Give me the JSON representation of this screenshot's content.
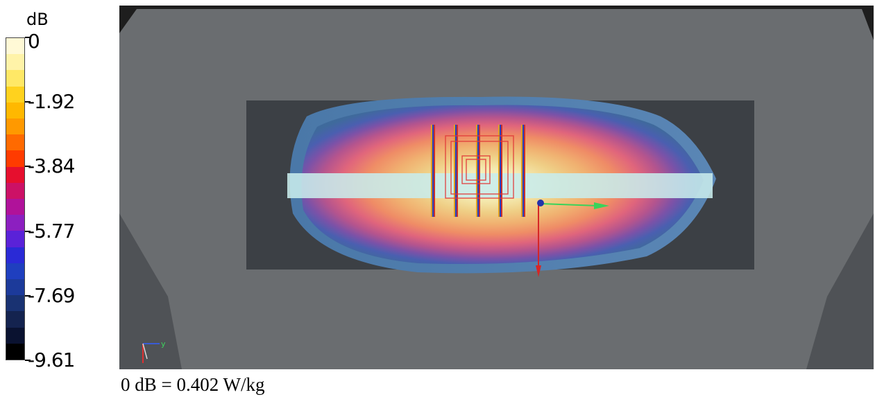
{
  "legend": {
    "unit": "dB",
    "ticks": [
      "0",
      "-1.92",
      "-3.84",
      "-5.77",
      "-7.69",
      "-9.61"
    ],
    "colors": [
      "#fff9d6",
      "#fff3a8",
      "#ffe866",
      "#ffd21e",
      "#ffb800",
      "#ff9900",
      "#ff6a00",
      "#ff3b00",
      "#e60f2e",
      "#cc1166",
      "#b0129a",
      "#8c1fc0",
      "#5a22d8",
      "#2a2ad6",
      "#1f3fbf",
      "#1c3a9a",
      "#193272",
      "#14234f",
      "#0a1230",
      "#000000"
    ]
  },
  "viewport": {
    "background_color": "#1e1e1e",
    "phantom_color": "#6a6d70",
    "plate_color": "#3c4045",
    "triad_icon": "xyz-axes-icon",
    "triad_label": "y"
  },
  "footnote": "0 dB = 0.402 W/kg"
}
